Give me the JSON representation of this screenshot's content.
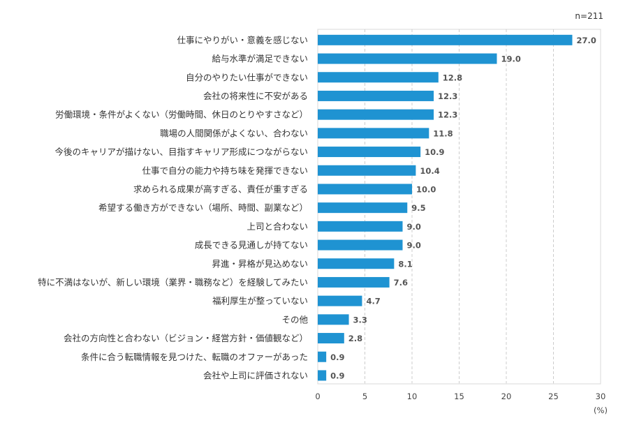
{
  "note": "n=211",
  "unit": "(%)",
  "chart_data": {
    "type": "bar",
    "orientation": "horizontal",
    "categories": [
      "仕事にやりがい・意義を感じない",
      "給与水準が満足できない",
      "自分のやりたい仕事ができない",
      "会社の将来性に不安がある",
      "労働環境・条件がよくない（労働時間、休日のとりやすさなど）",
      "職場の人間関係がよくない、合わない",
      "今後のキャリアが描けない、目指すキャリア形成につながらない",
      "仕事で自分の能力や持ち味を発揮できない",
      "求められる成果が高すぎる、責任が重すぎる",
      "希望する働き方ができない（場所、時間、副業など）",
      "上司と合わない",
      "成長できる見通しが持てない",
      "昇進・昇格が見込めない",
      "特に不満はないが、新しい環境（業界・職務など）を経験してみたい",
      "福利厚生が整っていない",
      "その他",
      "会社の方向性と合わない（ビジョン・経営方針・価値観など）",
      "条件に合う転職情報を見つけた、転職のオファーがあった",
      "会社や上司に評価されない"
    ],
    "values": [
      27.0,
      19.0,
      12.8,
      12.3,
      12.3,
      11.8,
      10.9,
      10.4,
      10.0,
      9.5,
      9.0,
      9.0,
      8.1,
      7.6,
      4.7,
      3.3,
      2.8,
      0.9,
      0.9
    ],
    "value_labels": [
      "27.0",
      "19.0",
      "12.8",
      "12.3",
      "12.3",
      "11.8",
      "10.9",
      "10.4",
      "10.0",
      "9.5",
      "9.0",
      "9.0",
      "8.1",
      "7.6",
      "4.7",
      "3.3",
      "2.8",
      "0.9",
      "0.9"
    ],
    "xlim": [
      0,
      30
    ],
    "xticks": [
      "0",
      "5",
      "10",
      "15",
      "20",
      "25",
      "30"
    ],
    "grid": "vertical dashed",
    "bar_color": "#1f93d2"
  }
}
